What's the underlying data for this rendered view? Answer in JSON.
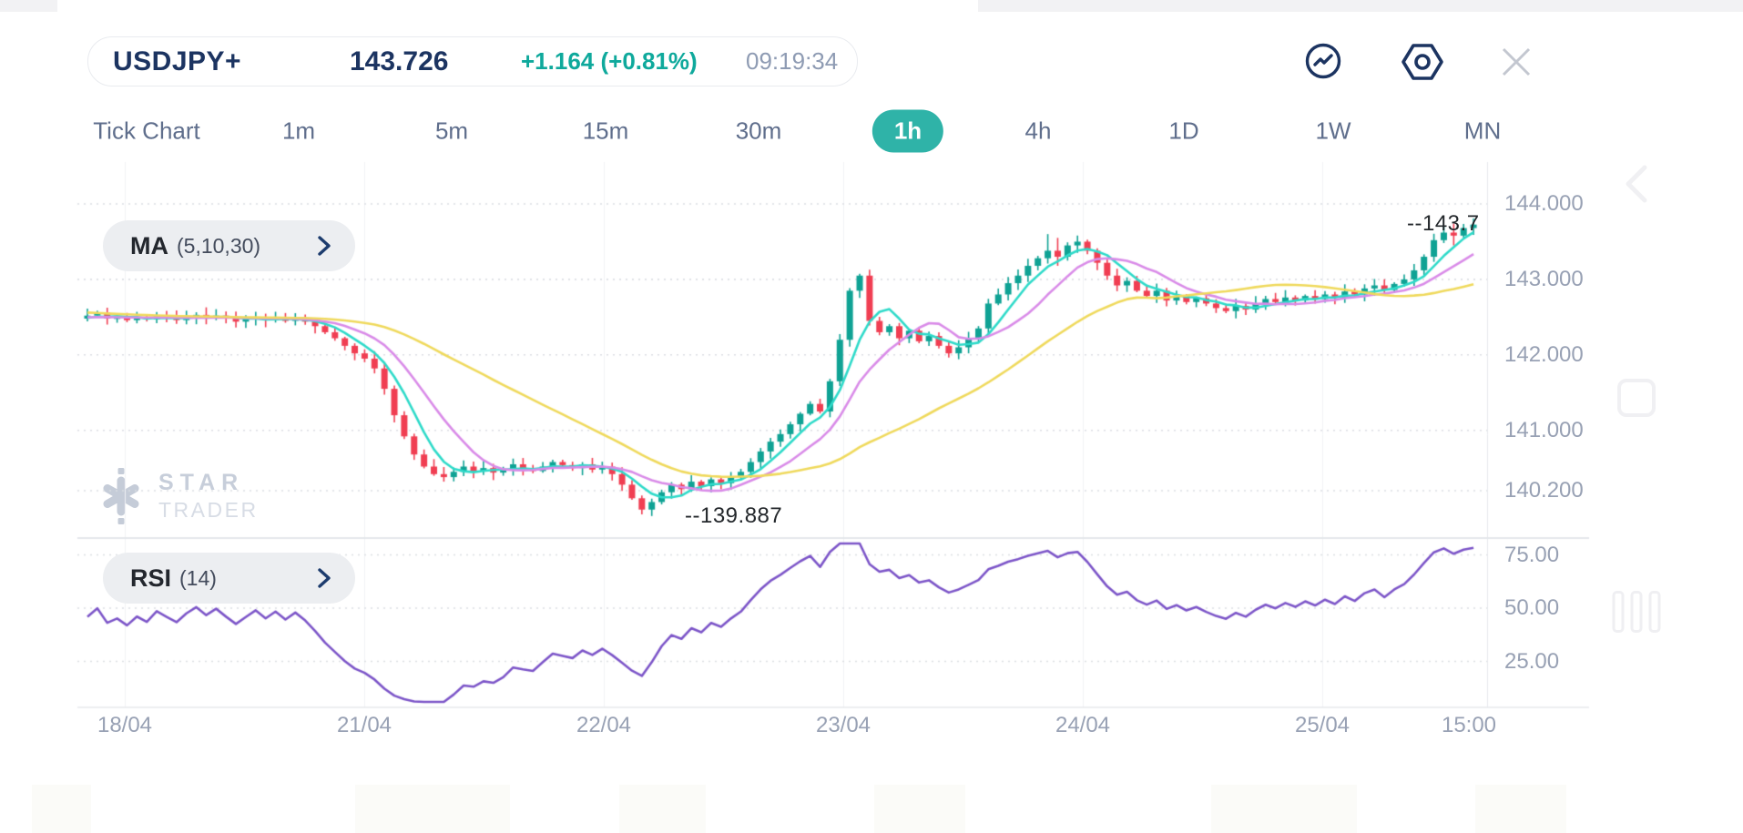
{
  "header": {
    "symbol": "USDJPY+",
    "price": "143.726",
    "change": "+1.164 (+0.81%)",
    "time": "09:19:34"
  },
  "toolbar": {
    "chart_type_icon": "line-chart-circle-icon",
    "settings_icon": "settings-hexagon-icon",
    "close_icon": "close-icon"
  },
  "timeframes": {
    "items": [
      "Tick Chart",
      "1m",
      "5m",
      "15m",
      "30m",
      "1h",
      "4h",
      "1D",
      "1W",
      "MN"
    ],
    "selected": "1h"
  },
  "indicators": {
    "ma": {
      "label": "MA",
      "params": "(5,10,30)"
    },
    "rsi": {
      "label": "RSI",
      "params": "(14)"
    }
  },
  "watermark": {
    "line1": "STAR",
    "line2": "TRADER"
  },
  "price_axis": [
    "144.000",
    "143.000",
    "142.000",
    "141.000",
    "140.200"
  ],
  "rsi_axis": [
    "75.00",
    "50.00",
    "25.00"
  ],
  "time_axis": [
    "18/04",
    "21/04",
    "22/04",
    "23/04",
    "24/04",
    "25/04",
    "15:00"
  ],
  "callouts": {
    "current": "--143.7",
    "low": "--139.887"
  },
  "colors": {
    "navy": "#1C3461",
    "accent_teal": "#0FA99C",
    "selected_pill": "#2FB3A8",
    "up": "#0FA294",
    "down": "#F03E52",
    "ma5": "#2EDAC9",
    "ma10": "#D98BE8",
    "ma30": "#EFD95C",
    "rsi": "#7C55C8",
    "axis_label": "#98A1B4"
  },
  "chart_data": {
    "type": "candlestick",
    "symbol": "USDJPY+",
    "interval": "1h",
    "title": "USDJPY+ 1h candlestick chart with MA(5,10,30) and RSI(14)",
    "y_axis": {
      "labels": [
        144.0,
        143.0,
        142.0,
        141.0,
        140.2
      ],
      "current_price": 143.726,
      "low_marker": 139.887
    },
    "x_axis": {
      "labels": [
        "18/04",
        "21/04",
        "22/04",
        "23/04",
        "24/04",
        "25/04",
        "15:00"
      ]
    },
    "open_rule": "each open equals previous close; first_open applies to first candle",
    "first_open": 142.48,
    "pre_closes": [
      142.7,
      142.66,
      142.72,
      142.68,
      142.63,
      142.66,
      142.6,
      142.64,
      142.58,
      142.62,
      142.56,
      142.6,
      142.55,
      142.58,
      142.54,
      142.57,
      142.52,
      142.56,
      142.5,
      142.54,
      142.5,
      142.53,
      142.49,
      142.52,
      142.48,
      142.51,
      142.47,
      142.5,
      142.46,
      142.5
    ],
    "closes": [
      142.52,
      142.56,
      142.48,
      142.5,
      142.46,
      142.5,
      142.47,
      142.52,
      142.49,
      142.46,
      142.5,
      142.53,
      142.49,
      142.52,
      142.48,
      142.44,
      142.47,
      142.5,
      142.46,
      142.49,
      142.45,
      142.48,
      142.44,
      142.38,
      142.3,
      142.22,
      142.12,
      142.02,
      141.95,
      141.82,
      141.55,
      141.2,
      140.92,
      140.68,
      140.52,
      140.42,
      140.38,
      140.45,
      140.52,
      140.46,
      140.5,
      140.44,
      140.48,
      140.55,
      140.5,
      140.46,
      140.52,
      140.58,
      140.54,
      140.5,
      140.55,
      140.48,
      140.52,
      140.42,
      140.28,
      140.1,
      139.95,
      140.05,
      140.18,
      140.28,
      140.22,
      140.32,
      140.26,
      140.35,
      140.3,
      140.38,
      140.45,
      140.58,
      140.72,
      140.85,
      140.95,
      141.08,
      141.22,
      141.35,
      141.25,
      141.65,
      142.2,
      142.85,
      143.05,
      142.45,
      142.3,
      142.38,
      142.22,
      142.32,
      142.18,
      142.25,
      142.12,
      142.02,
      142.1,
      142.22,
      142.35,
      142.68,
      142.8,
      142.95,
      143.05,
      143.18,
      143.28,
      143.38,
      143.3,
      143.45,
      143.5,
      143.38,
      143.22,
      143.05,
      142.92,
      142.98,
      142.85,
      142.78,
      142.85,
      142.72,
      142.78,
      142.7,
      142.75,
      142.68,
      142.62,
      142.58,
      142.65,
      142.6,
      142.68,
      142.74,
      142.7,
      142.76,
      142.72,
      142.78,
      142.74,
      142.8,
      142.76,
      142.84,
      142.8,
      142.88,
      142.92,
      142.86,
      142.94,
      143.0,
      143.12,
      143.3,
      143.52,
      143.62,
      143.58,
      143.68,
      143.726
    ],
    "wick_overrides": {
      "56": {
        "low": 139.887
      },
      "97": {
        "high": 143.6
      },
      "98": {
        "high": 143.55,
        "low": 143.18
      },
      "100": {
        "high": 143.58
      },
      "138": {
        "high": 143.74,
        "low": 143.45
      }
    },
    "indicator_overlays": [
      {
        "name": "MA",
        "periods": [
          5,
          10,
          30
        ],
        "colors": [
          "#2EDAC9",
          "#D98BE8",
          "#EFD95C"
        ]
      },
      {
        "name": "RSI",
        "period": 14,
        "levels": [
          75,
          50,
          25
        ],
        "color": "#7C55C8"
      }
    ]
  }
}
